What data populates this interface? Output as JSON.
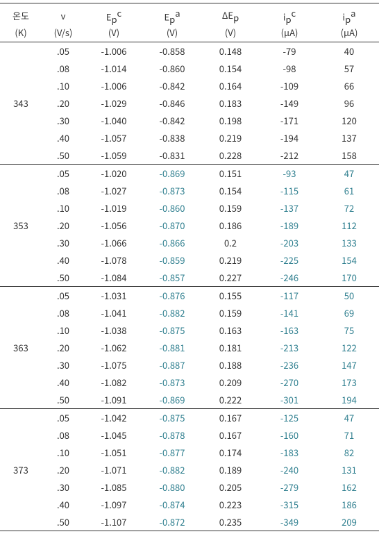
{
  "colors": {
    "text_default": "#333333",
    "text_teal": "#2f7f8f",
    "background": "#ffffff",
    "border": "#333333"
  },
  "fontsize": {
    "body": 13,
    "supsub": 9
  },
  "header": {
    "c0_top": "온도",
    "c0_unit": "(K)",
    "c1_top": "v",
    "c1_unit": "(V/s)",
    "c2_top": "E",
    "c2_sub": "p",
    "c2_sup": "c",
    "c2_unit": "(V)",
    "c3_top": "E",
    "c3_sub": "p",
    "c3_sup": "a",
    "c3_unit": "(V)",
    "c4_top": "ΔE",
    "c4_sub": "p",
    "c4_unit": "(V)",
    "c5_top": "i",
    "c5_sub": "p",
    "c5_sup": "c",
    "c5_unit": "(μA)",
    "c6_top": "i",
    "c6_sub": "p",
    "c6_sup": "a",
    "c6_unit": "(μA)"
  },
  "groups": [
    {
      "temp": "343",
      "rows": [
        {
          "v": ".05",
          "epc": "-1.006",
          "epa": "-0.858",
          "dep": "0.148",
          "ipc": "-79",
          "ipa": "40",
          "epa_c": "#333333",
          "ipc_c": "#333333",
          "ipa_c": "#333333"
        },
        {
          "v": ".08",
          "epc": "-1.014",
          "epa": "-0.860",
          "dep": "0.154",
          "ipc": "-98",
          "ipa": "57",
          "epa_c": "#333333",
          "ipc_c": "#333333",
          "ipa_c": "#333333"
        },
        {
          "v": ".10",
          "epc": "-1.006",
          "epa": "-0.842",
          "dep": "0.164",
          "ipc": "-109",
          "ipa": "66",
          "epa_c": "#333333",
          "ipc_c": "#333333",
          "ipa_c": "#333333"
        },
        {
          "v": ".20",
          "epc": "-1.029",
          "epa": "-0.846",
          "dep": "0.183",
          "ipc": "-149",
          "ipa": "96",
          "epa_c": "#333333",
          "ipc_c": "#333333",
          "ipa_c": "#333333"
        },
        {
          "v": ".30",
          "epc": "-1.040",
          "epa": "-0.842",
          "dep": "0.198",
          "ipc": "-171",
          "ipa": "120",
          "epa_c": "#333333",
          "ipc_c": "#333333",
          "ipa_c": "#333333"
        },
        {
          "v": ".40",
          "epc": "-1.057",
          "epa": "-0.838",
          "dep": "0.219",
          "ipc": "-194",
          "ipa": "137",
          "epa_c": "#333333",
          "ipc_c": "#333333",
          "ipa_c": "#333333"
        },
        {
          "v": ".50",
          "epc": "-1.059",
          "epa": "-0.831",
          "dep": "0.228",
          "ipc": "-212",
          "ipa": "158",
          "epa_c": "#333333",
          "ipc_c": "#333333",
          "ipa_c": "#333333"
        }
      ]
    },
    {
      "temp": "353",
      "rows": [
        {
          "v": ".05",
          "epc": "-1.020",
          "epa": "-0.869",
          "dep": "0.151",
          "ipc": "-93",
          "ipa": "47",
          "epa_c": "#2f7f8f",
          "ipc_c": "#2f7f8f",
          "ipa_c": "#2f7f8f"
        },
        {
          "v": ".08",
          "epc": "-1.027",
          "epa": "-0.873",
          "dep": "0.154",
          "ipc": "-115",
          "ipa": "61",
          "epa_c": "#2f7f8f",
          "ipc_c": "#2f7f8f",
          "ipa_c": "#2f7f8f"
        },
        {
          "v": ".10",
          "epc": "-1.019",
          "epa": "-0.860",
          "dep": "0.159",
          "ipc": "-137",
          "ipa": "72",
          "epa_c": "#2f7f8f",
          "ipc_c": "#2f7f8f",
          "ipa_c": "#2f7f8f"
        },
        {
          "v": ".20",
          "epc": "-1.056",
          "epa": "-0.870",
          "dep": "0.186",
          "ipc": "-189",
          "ipa": "112",
          "epa_c": "#2f7f8f",
          "ipc_c": "#2f7f8f",
          "ipa_c": "#2f7f8f"
        },
        {
          "v": ".30",
          "epc": "-1.066",
          "epa": "-0.866",
          "dep": "0.2",
          "ipc": "-203",
          "ipa": "133",
          "epa_c": "#2f7f8f",
          "ipc_c": "#2f7f8f",
          "ipa_c": "#2f7f8f"
        },
        {
          "v": ".40",
          "epc": "-1.078",
          "epa": "-0.859",
          "dep": "0.219",
          "ipc": "-225",
          "ipa": "154",
          "epa_c": "#2f7f8f",
          "ipc_c": "#2f7f8f",
          "ipa_c": "#2f7f8f"
        },
        {
          "v": ".50",
          "epc": "-1.084",
          "epa": "-0.857",
          "dep": "0.227",
          "ipc": "-246",
          "ipa": "170",
          "epa_c": "#2f7f8f",
          "ipc_c": "#2f7f8f",
          "ipa_c": "#2f7f8f"
        }
      ]
    },
    {
      "temp": "363",
      "rows": [
        {
          "v": ".05",
          "epc": "-1.031",
          "epa": "-0.876",
          "dep": "0.155",
          "ipc": "-117",
          "ipa": "50",
          "epa_c": "#2f7f8f",
          "ipc_c": "#2f7f8f",
          "ipa_c": "#2f7f8f"
        },
        {
          "v": ".08",
          "epc": "-1.041",
          "epa": "-0.882",
          "dep": "0.159",
          "ipc": "-141",
          "ipa": "69",
          "epa_c": "#2f7f8f",
          "ipc_c": "#2f7f8f",
          "ipa_c": "#2f7f8f"
        },
        {
          "v": ".10",
          "epc": "-1.038",
          "epa": "-0.875",
          "dep": "0.163",
          "ipc": "-163",
          "ipa": "75",
          "epa_c": "#2f7f8f",
          "ipc_c": "#2f7f8f",
          "ipa_c": "#2f7f8f"
        },
        {
          "v": ".20",
          "epc": "-1.062",
          "epa": "-0.881",
          "dep": "0.181",
          "ipc": "-213",
          "ipa": "122",
          "epa_c": "#2f7f8f",
          "ipc_c": "#2f7f8f",
          "ipa_c": "#2f7f8f"
        },
        {
          "v": ".30",
          "epc": "-1.075",
          "epa": "-0.887",
          "dep": "0.188",
          "ipc": "-236",
          "ipa": "147",
          "epa_c": "#2f7f8f",
          "ipc_c": "#2f7f8f",
          "ipa_c": "#2f7f8f"
        },
        {
          "v": ".40",
          "epc": "-1.082",
          "epa": "-0.873",
          "dep": "0.209",
          "ipc": "-270",
          "ipa": "173",
          "epa_c": "#2f7f8f",
          "ipc_c": "#2f7f8f",
          "ipa_c": "#2f7f8f"
        },
        {
          "v": ".50",
          "epc": "-1.091",
          "epa": "-0.869",
          "dep": "0.222",
          "ipc": "-301",
          "ipa": "194",
          "epa_c": "#2f7f8f",
          "ipc_c": "#2f7f8f",
          "ipa_c": "#2f7f8f"
        }
      ]
    },
    {
      "temp": "373",
      "rows": [
        {
          "v": ".05",
          "epc": "-1.042",
          "epa": "-0.875",
          "dep": "0.167",
          "ipc": "-125",
          "ipa": "47",
          "epa_c": "#2f7f8f",
          "ipc_c": "#2f7f8f",
          "ipa_c": "#2f7f8f"
        },
        {
          "v": ".08",
          "epc": "-1.045",
          "epa": "-0.878",
          "dep": "0.167",
          "ipc": "-160",
          "ipa": "71",
          "epa_c": "#2f7f8f",
          "ipc_c": "#2f7f8f",
          "ipa_c": "#2f7f8f"
        },
        {
          "v": ".10",
          "epc": "-1.051",
          "epa": "-0.877",
          "dep": "0.174",
          "ipc": "-183",
          "ipa": "82",
          "epa_c": "#2f7f8f",
          "ipc_c": "#2f7f8f",
          "ipa_c": "#2f7f8f"
        },
        {
          "v": ".20",
          "epc": "-1.071",
          "epa": "-0.882",
          "dep": "0.189",
          "ipc": "-240",
          "ipa": "131",
          "epa_c": "#2f7f8f",
          "ipc_c": "#2f7f8f",
          "ipa_c": "#2f7f8f"
        },
        {
          "v": ".30",
          "epc": "-1.085",
          "epa": "-0.880",
          "dep": "0.205",
          "ipc": "-279",
          "ipa": "162",
          "epa_c": "#2f7f8f",
          "ipc_c": "#2f7f8f",
          "ipa_c": "#2f7f8f"
        },
        {
          "v": ".40",
          "epc": "-1.097",
          "epa": "-0.874",
          "dep": "0.223",
          "ipc": "-315",
          "ipa": "186",
          "epa_c": "#2f7f8f",
          "ipc_c": "#2f7f8f",
          "ipa_c": "#2f7f8f"
        },
        {
          "v": ".50",
          "epc": "-1.107",
          "epa": "-0.872",
          "dep": "0.235",
          "ipc": "-349",
          "ipa": "209",
          "epa_c": "#2f7f8f",
          "ipc_c": "#2f7f8f",
          "ipa_c": "#2f7f8f"
        }
      ]
    }
  ]
}
